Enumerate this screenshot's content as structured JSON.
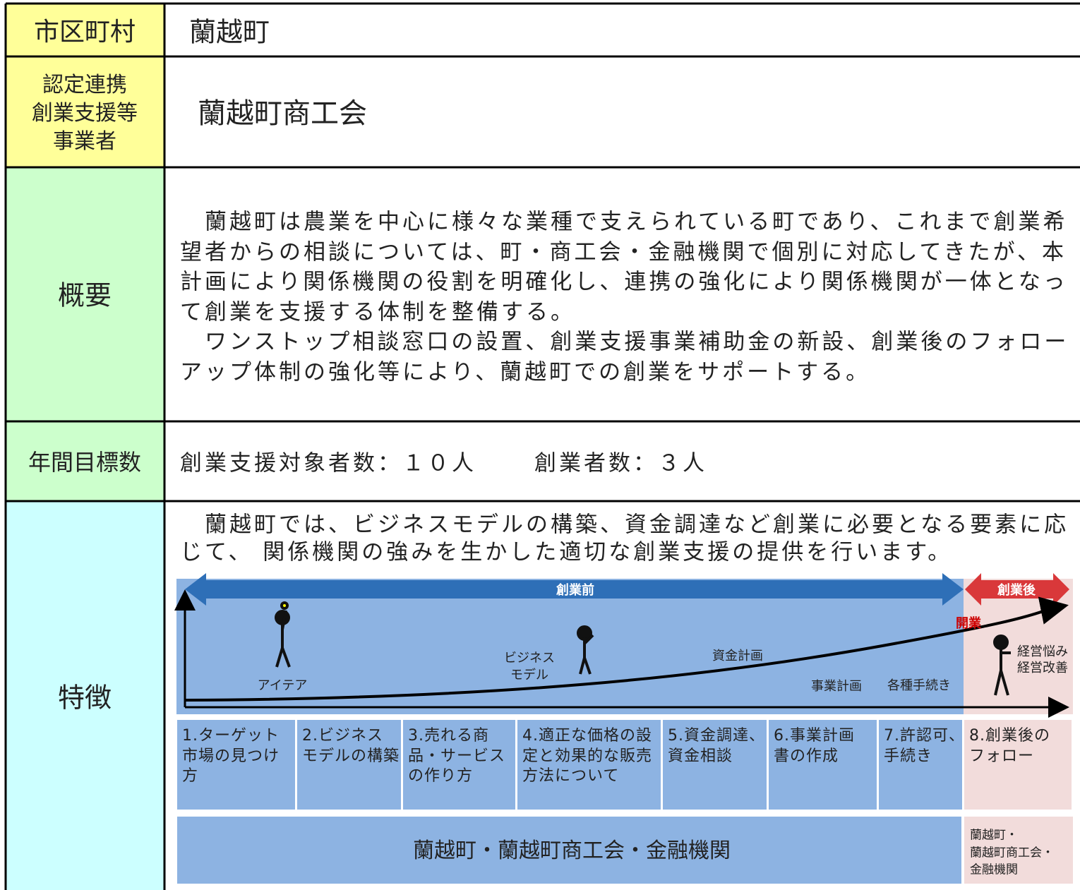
{
  "table": {
    "rows": [
      {
        "label": [
          "市区町村"
        ],
        "content": "蘭越町"
      },
      {
        "label": [
          "認定連携",
          "創業支援等",
          "事業者"
        ],
        "content": "蘭越町商工会"
      },
      {
        "label": [
          "概要"
        ],
        "lines": [
          "　蘭越町は農業を中心に様々な業種で支えられている町であり、これまで創業希",
          "望者からの相談については、町・商工会・金融機関で個別に対応してきたが、本",
          "計画により関係機関の役割を明確化し、連携の強化により関係機関が一体となっ",
          "て創業を支援する体制を整備する。",
          "　ワンストップ相談窓口の設置、創業支援事業補助金の新設、創業後のフォロー",
          "アップ体制の強化等により、蘭越町での創業をサポートする。"
        ]
      },
      {
        "label": [
          "年間目標数"
        ],
        "targets": [
          "創業支援対象者数：１０人",
          "創業者数：３人"
        ]
      },
      {
        "label": [
          "特徴"
        ],
        "lines": [
          "　蘭越町では、ビジネスモデルの構築、資金調達など創業に必要となる要素に応",
          "じて、 関係機関の強みを生かした適切な創業支援の提供を行います。"
        ]
      }
    ],
    "diagram": {
      "before": "創業前",
      "after": "創業後",
      "opening": "開業",
      "idea": "アイテア",
      "model": [
        "ビジネス",
        "モデル"
      ],
      "funding": "資金計画",
      "plan": "事業計画",
      "procedures": "各種手続き",
      "worries": [
        "経営悩み",
        "経営改善"
      ],
      "steps": [
        [
          "1.ターゲット",
          "市場の見つけ",
          "方"
        ],
        [
          "2.ビジネス",
          "モデルの構築"
        ],
        [
          "3.売れる商",
          "品・サービス",
          "の作り方"
        ],
        [
          "4.適正な価格の設",
          "定と効果的な販売",
          "方法について"
        ],
        [
          "5.資金調達、",
          "資金相談"
        ],
        [
          "6.事業計画",
          "書の作成"
        ],
        [
          "7.許認可、",
          "手続き"
        ],
        [
          "8.創業後の",
          "フォロー"
        ]
      ],
      "support": "蘭越町・蘭越町商工会・金融機関",
      "support_after": [
        "蘭越町・",
        "蘭越町商工会・",
        "金融機関"
      ]
    }
  }
}
